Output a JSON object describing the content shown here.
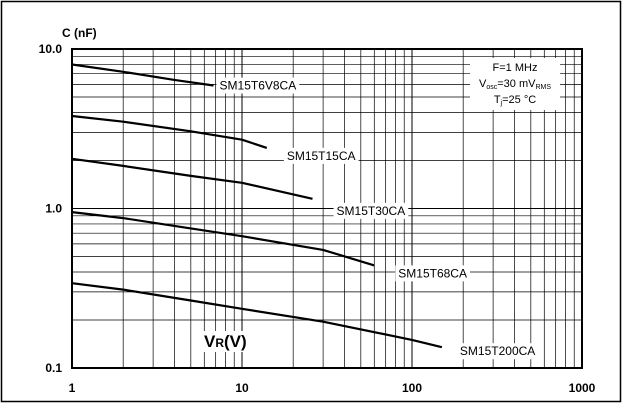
{
  "chart_data": {
    "type": "line",
    "title": "",
    "ylabel": "C (nF)",
    "xlabel": "VR (V)",
    "xlabel_main": "V",
    "xlabel_sub": "R",
    "xlabel_unit": "(V)",
    "x_scale": "log",
    "y_scale": "log",
    "xlim": [
      1,
      1000
    ],
    "ylim": [
      0.1,
      10
    ],
    "x_ticks": [
      "1",
      "10",
      "100",
      "1000"
    ],
    "y_ticks": [
      "10.0",
      "1.0",
      "0.1"
    ],
    "grid": true,
    "conditions": {
      "freq": "F=1 MHz",
      "vosc_prefix": "V",
      "vosc_sub": "osc",
      "vosc_value": "=30 mV",
      "vosc_sub2": "RMS",
      "tj_prefix": "T",
      "tj_sub": "j",
      "tj_value": "=25 °C"
    },
    "series": [
      {
        "name": "SM15T6V8CA",
        "x": [
          1,
          2,
          4,
          6.8
        ],
        "y": [
          8.0,
          7.2,
          6.4,
          5.9
        ]
      },
      {
        "name": "SM15T15CA",
        "x": [
          1,
          2,
          5,
          10,
          14
        ],
        "y": [
          3.8,
          3.5,
          3.05,
          2.7,
          2.4
        ]
      },
      {
        "name": "SM15T30CA",
        "x": [
          1,
          2,
          5,
          10,
          26
        ],
        "y": [
          2.05,
          1.85,
          1.6,
          1.45,
          1.15
        ]
      },
      {
        "name": "SM15T68CA",
        "x": [
          1,
          2,
          5,
          10,
          30,
          60
        ],
        "y": [
          0.95,
          0.87,
          0.75,
          0.67,
          0.55,
          0.44
        ]
      },
      {
        "name": "SM15T200CA",
        "x": [
          1,
          2,
          5,
          10,
          30,
          100,
          150
        ],
        "y": [
          0.34,
          0.31,
          0.265,
          0.235,
          0.195,
          0.15,
          0.135
        ]
      }
    ]
  }
}
